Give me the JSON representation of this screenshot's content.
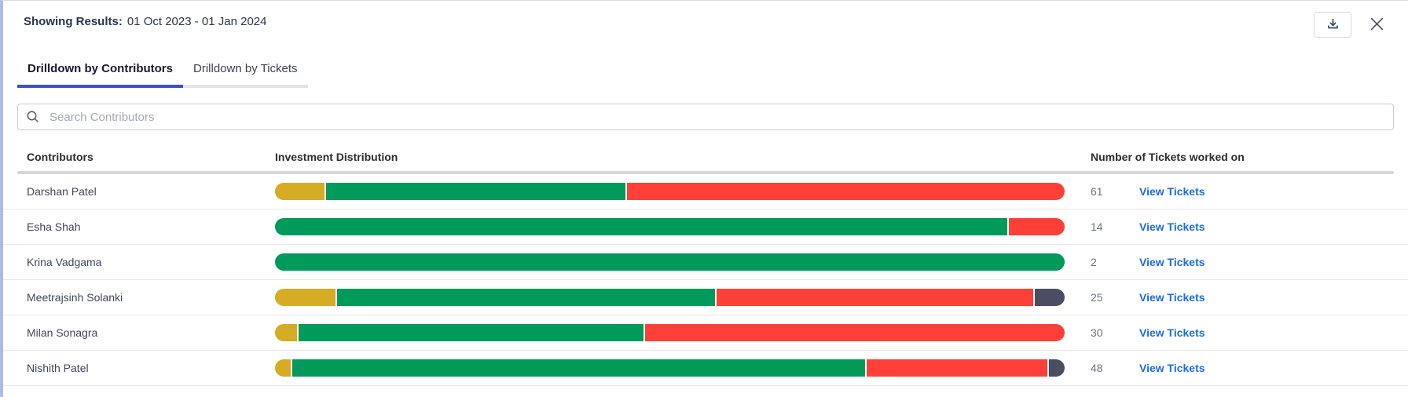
{
  "panel": {
    "results_label": "Showing Results:",
    "date_range": "01 Oct 2023 - 01 Jan 2024"
  },
  "tabs": [
    {
      "label": "Drilldown by Contributors",
      "active": true
    },
    {
      "label": "Drilldown by Tickets",
      "active": false
    }
  ],
  "search": {
    "placeholder": "Search Contributors",
    "value": ""
  },
  "table": {
    "columns": [
      "Contributors",
      "Investment Distribution",
      "Number of Tickets worked on"
    ],
    "view_tickets_label": "View Tickets",
    "rows": [
      {
        "name": "Darshan Patel",
        "tickets": "61",
        "segments": [
          {
            "type": "yellow",
            "pct": 6.3
          },
          {
            "type": "green",
            "pct": 38.1
          },
          {
            "type": "red",
            "pct": 55.6
          }
        ]
      },
      {
        "name": "Esha Shah",
        "tickets": "14",
        "segments": [
          {
            "type": "green",
            "pct": 92.9
          },
          {
            "type": "red",
            "pct": 7.1
          }
        ]
      },
      {
        "name": "Krina Vadgama",
        "tickets": "2",
        "segments": [
          {
            "type": "green",
            "pct": 100
          }
        ]
      },
      {
        "name": "Meetrajsinh Solanki",
        "tickets": "25",
        "segments": [
          {
            "type": "yellow",
            "pct": 7.7
          },
          {
            "type": "green",
            "pct": 48.2
          },
          {
            "type": "red",
            "pct": 40.3
          },
          {
            "type": "dark",
            "pct": 3.8
          }
        ]
      },
      {
        "name": "Milan Sonagra",
        "tickets": "30",
        "segments": [
          {
            "type": "yellow",
            "pct": 2.8
          },
          {
            "type": "green",
            "pct": 43.9
          },
          {
            "type": "red",
            "pct": 53.3
          }
        ]
      },
      {
        "name": "Nishith Patel",
        "tickets": "48",
        "segments": [
          {
            "type": "yellow",
            "pct": 2.0
          },
          {
            "type": "green",
            "pct": 73.0
          },
          {
            "type": "red",
            "pct": 23.0
          },
          {
            "type": "dark",
            "pct": 2.0
          }
        ]
      }
    ]
  },
  "icons": {
    "download": "download-icon",
    "close": "close-icon",
    "search": "search-icon"
  },
  "colors": {
    "yellow": "#D5AC24",
    "green": "#009A5B",
    "red": "#FF4038",
    "dark": "#4B4D63",
    "active_tab_underline": "#3E4FC9",
    "link": "#1C6CE3",
    "left_border": "#AFB8EA"
  }
}
